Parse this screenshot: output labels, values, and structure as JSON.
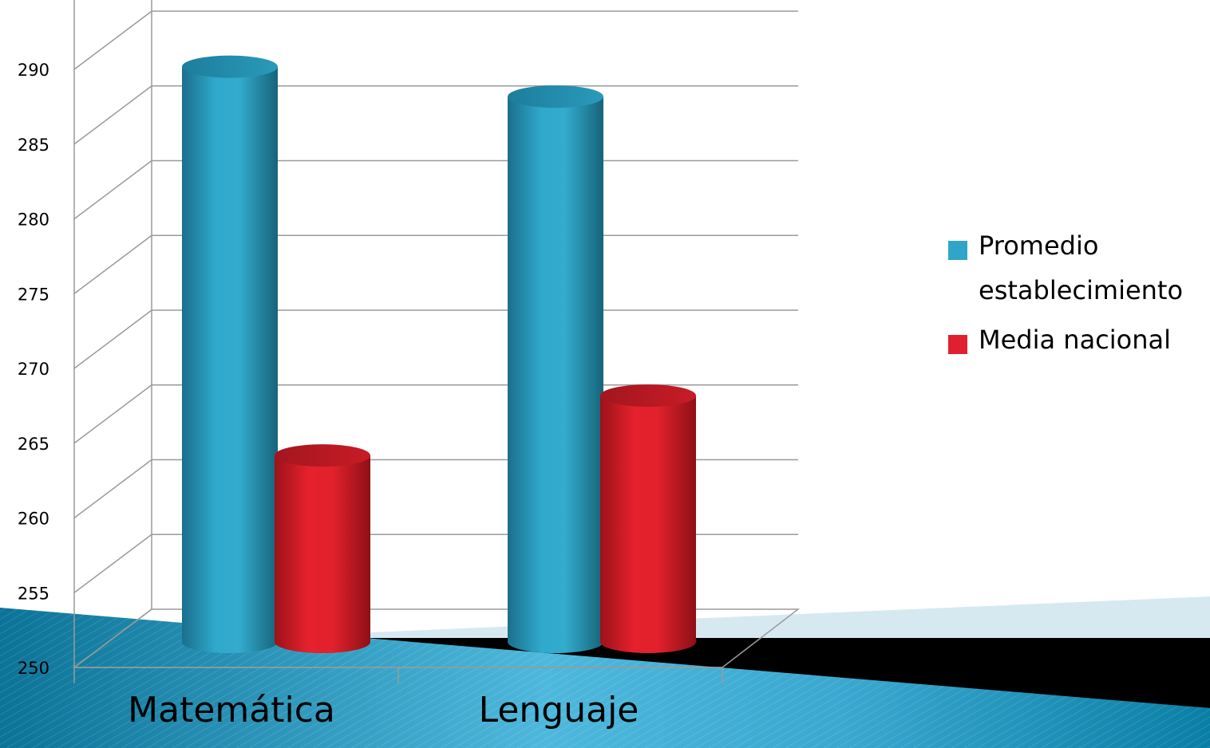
{
  "chart_data": {
    "type": "bar",
    "style": "3d-cylinder",
    "categories": [
      "Matemática",
      "Lenguaje"
    ],
    "series": [
      {
        "name": "Promedio establecimiento",
        "values": [
          290.5,
          288.5
        ],
        "color": "#2fa6c8"
      },
      {
        "name": "Media nacional",
        "values": [
          264.5,
          268.5
        ],
        "color": "#e0202e"
      }
    ],
    "yticks": [
      "250",
      "255",
      "260",
      "265",
      "270",
      "275",
      "280",
      "285",
      "290"
    ],
    "ylim": [
      250,
      295
    ],
    "grid": true,
    "legend_position": "right",
    "title": "",
    "xlabel": "",
    "ylabel": ""
  },
  "colors": {
    "bg_band_light": "#d6e9f1",
    "bg_band_black": "#000000",
    "bg_band_blue_dark": "#0a7da6",
    "bg_band_blue_light": "#55bde0",
    "gridline": "#9a9a9a"
  }
}
